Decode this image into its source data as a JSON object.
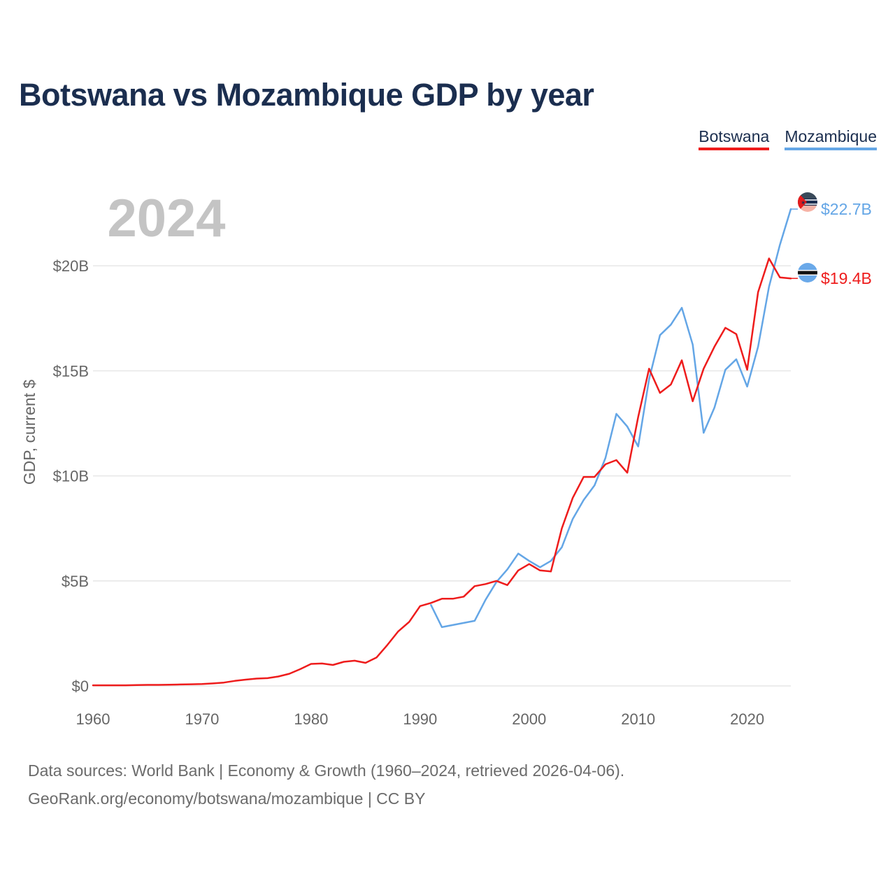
{
  "title": "Botswana vs Mozambique GDP by year",
  "legend": {
    "botswana": "Botswana",
    "mozambique": "Mozambique"
  },
  "footer": {
    "line1": "Data sources: World Bank | Economy & Growth (1960–2024, retrieved 2026-04-06).",
    "line2": "GeoRank.org/economy/botswana/mozambique | CC BY"
  },
  "colors": {
    "botswana": "#ee1c1c",
    "mozambique": "#64a6e6",
    "grid": "#e6e6e6",
    "axis_text": "#666666",
    "year_watermark": "#c4c4c4"
  },
  "chart_data": {
    "type": "line",
    "title": "Botswana vs Mozambique GDP by year",
    "xlabel": "",
    "ylabel": "GDP, current $",
    "year_label": "2024",
    "xlim": [
      1960,
      2024
    ],
    "ylim": [
      0,
      23
    ],
    "x_ticks": [
      1960,
      1970,
      1980,
      1990,
      2000,
      2010,
      2020
    ],
    "y_ticks": [
      {
        "value": 0,
        "label": "$0"
      },
      {
        "value": 5,
        "label": "$5B"
      },
      {
        "value": 10,
        "label": "$10B"
      },
      {
        "value": 15,
        "label": "$15B"
      },
      {
        "value": 20,
        "label": "$20B"
      }
    ],
    "series": [
      {
        "name": "Botswana",
        "color": "#ee1c1c",
        "end_label": "$19.4B",
        "x": [
          1960,
          1961,
          1962,
          1963,
          1964,
          1965,
          1966,
          1967,
          1968,
          1969,
          1970,
          1971,
          1972,
          1973,
          1974,
          1975,
          1976,
          1977,
          1978,
          1979,
          1980,
          1981,
          1982,
          1983,
          1984,
          1985,
          1986,
          1987,
          1988,
          1989,
          1990,
          1991,
          1992,
          1993,
          1994,
          1995,
          1996,
          1997,
          1998,
          1999,
          2000,
          2001,
          2002,
          2003,
          2004,
          2005,
          2006,
          2007,
          2008,
          2009,
          2010,
          2011,
          2012,
          2013,
          2014,
          2015,
          2016,
          2017,
          2018,
          2019,
          2020,
          2021,
          2022,
          2023,
          2024
        ],
        "values": [
          0.03,
          0.03,
          0.03,
          0.03,
          0.04,
          0.05,
          0.05,
          0.06,
          0.07,
          0.08,
          0.09,
          0.12,
          0.16,
          0.24,
          0.3,
          0.35,
          0.37,
          0.45,
          0.58,
          0.8,
          1.05,
          1.07,
          1.0,
          1.15,
          1.2,
          1.1,
          1.35,
          1.95,
          2.6,
          3.05,
          3.8,
          3.95,
          4.15,
          4.15,
          4.25,
          4.75,
          4.85,
          5.0,
          4.8,
          5.5,
          5.8,
          5.5,
          5.45,
          7.5,
          8.95,
          9.95,
          9.95,
          10.55,
          10.75,
          10.15,
          12.8,
          15.1,
          13.95,
          14.35,
          15.5,
          13.55,
          15.1,
          16.15,
          17.05,
          16.75,
          15.05,
          18.75,
          20.35,
          19.45,
          19.4
        ]
      },
      {
        "name": "Mozambique",
        "color": "#64a6e6",
        "end_label": "$22.7B",
        "x": [
          1991,
          1992,
          1993,
          1994,
          1995,
          1996,
          1997,
          1998,
          1999,
          2000,
          2001,
          2002,
          2003,
          2004,
          2005,
          2006,
          2007,
          2008,
          2009,
          2010,
          2011,
          2012,
          2013,
          2014,
          2015,
          2016,
          2017,
          2018,
          2019,
          2020,
          2021,
          2022,
          2023,
          2024
        ],
        "values": [
          3.85,
          2.8,
          2.9,
          3.0,
          3.1,
          4.1,
          4.95,
          5.55,
          6.3,
          5.95,
          5.65,
          5.95,
          6.6,
          7.95,
          8.85,
          9.55,
          10.85,
          12.95,
          12.35,
          11.4,
          14.6,
          16.7,
          17.2,
          18.0,
          16.25,
          12.05,
          13.25,
          15.05,
          15.55,
          14.25,
          16.15,
          19.0,
          21.0,
          22.7
        ]
      }
    ]
  }
}
